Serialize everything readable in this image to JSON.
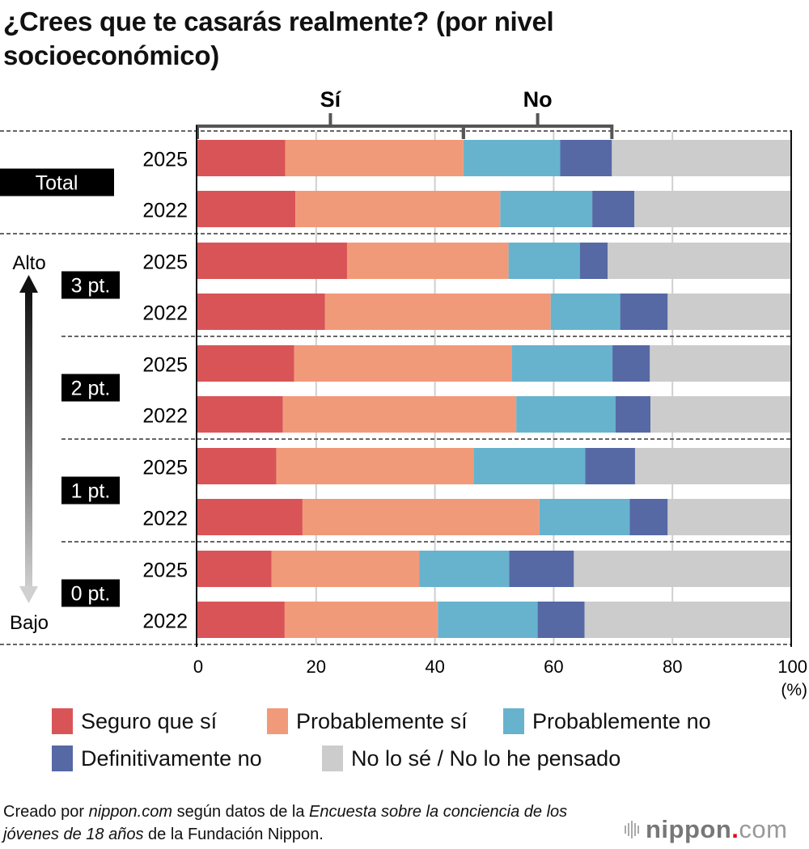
{
  "title": "¿Crees que te casarás realmente? (por nivel socioeconómico)",
  "colors": {
    "seguro_si": "#d95457",
    "probablemente_si": "#f19a79",
    "probablemente_no": "#67b3cd",
    "definitivamente_no": "#5669a5",
    "no_lo_se": "#cccccc",
    "label_bg": "#000000",
    "bracket": "#555555"
  },
  "brackets": [
    {
      "label": "Sí",
      "from": 0,
      "to": 44.8
    },
    {
      "label": "No",
      "from": 44.8,
      "to": 69.8
    }
  ],
  "scale": {
    "high_label": "Alto",
    "low_label": "Bajo"
  },
  "chart_data": {
    "type": "bar",
    "orientation": "horizontal",
    "stacked": true,
    "title": "¿Crees que te casarás realmente? (por nivel socioeconómico)",
    "xlabel": "(%)",
    "xlim": [
      0,
      100
    ],
    "xticks": [
      "0",
      "20",
      "40",
      "60",
      "80",
      "100"
    ],
    "grid": true,
    "legend_position": "bottom",
    "groups": [
      {
        "label": "Total",
        "rows": [
          {
            "year": "2025",
            "values": [
              14.8,
              30.0,
              16.3,
              8.7,
              30.2
            ]
          },
          {
            "year": "2022",
            "values": [
              16.5,
              34.5,
              15.5,
              7.1,
              26.4
            ]
          }
        ]
      },
      {
        "label": "3 pt.",
        "rows": [
          {
            "year": "2025",
            "values": [
              25.2,
              27.2,
              12.0,
              4.7,
              30.9
            ]
          },
          {
            "year": "2022",
            "values": [
              21.5,
              38.0,
              11.7,
              8.0,
              20.8
            ]
          }
        ]
      },
      {
        "label": "2 pt.",
        "rows": [
          {
            "year": "2025",
            "values": [
              16.3,
              36.6,
              17.0,
              6.3,
              23.8
            ]
          },
          {
            "year": "2022",
            "values": [
              14.4,
              39.3,
              16.7,
              5.9,
              23.7
            ]
          }
        ]
      },
      {
        "label": "1 pt.",
        "rows": [
          {
            "year": "2025",
            "values": [
              13.3,
              33.2,
              18.8,
              8.4,
              26.3
            ]
          },
          {
            "year": "2022",
            "values": [
              17.7,
              39.9,
              15.2,
              6.4,
              20.8
            ]
          }
        ]
      },
      {
        "label": "0 pt.",
        "rows": [
          {
            "year": "2025",
            "values": [
              12.5,
              24.9,
              15.1,
              10.9,
              36.6
            ]
          },
          {
            "year": "2022",
            "values": [
              14.7,
              25.8,
              16.8,
              7.9,
              34.8
            ]
          }
        ]
      }
    ],
    "series": [
      {
        "name": "Seguro que sí",
        "color": "#d95457"
      },
      {
        "name": "Probablemente sí",
        "color": "#f19a79"
      },
      {
        "name": "Probablemente no",
        "color": "#67b3cd"
      },
      {
        "name": "Definitivamente no",
        "color": "#5669a5"
      },
      {
        "name": "No lo sé / No lo he pensado",
        "color": "#cccccc"
      }
    ]
  },
  "legend": [
    {
      "label": "Seguro que sí",
      "color": "#d95457"
    },
    {
      "label": "Probablemente sí",
      "color": "#f19a79"
    },
    {
      "label": "Probablemente no",
      "color": "#67b3cd"
    },
    {
      "label": "Definitivamente no",
      "color": "#5669a5"
    },
    {
      "label": "No lo sé / No lo he pensado",
      "color": "#cccccc"
    }
  ],
  "footer": {
    "p1": "Creado por ",
    "i1": "nippon.com",
    "p2": " según datos de la ",
    "i2": "Encuesta sobre la conciencia de los jóvenes de 18 años",
    "p3": " de la Fundación Nippon."
  },
  "logo": {
    "name": "nippon",
    "dot": ".",
    "tld": "com"
  }
}
